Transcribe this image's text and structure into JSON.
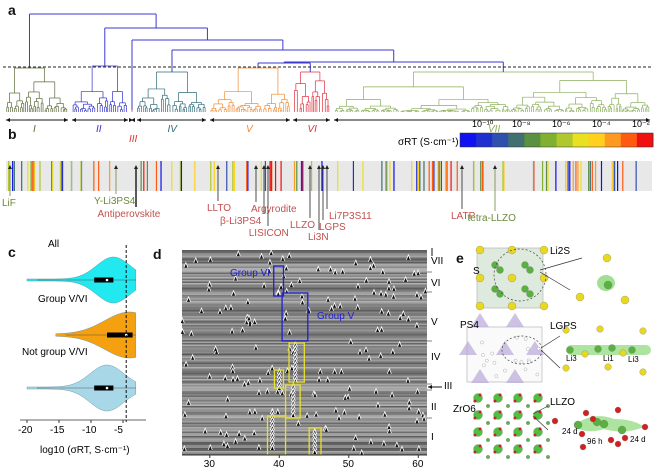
{
  "panels": {
    "a": "a",
    "b": "b",
    "c": "c",
    "d": "d",
    "e": "e"
  },
  "panel_a": {
    "groups": [
      {
        "label": "I",
        "color": "#5a6a3a"
      },
      {
        "label": "II",
        "color": "#3030d0"
      },
      {
        "label": "III",
        "color": "#e03030"
      },
      {
        "label": "IV",
        "color": "#2e6a78"
      },
      {
        "label": "V",
        "color": "#f08a30"
      },
      {
        "label": "VI",
        "color": "#e03040"
      },
      {
        "label": "VII",
        "color": "#8aae5a"
      }
    ]
  },
  "panel_b": {
    "colorbar_title": "σRT (S·cm⁻¹)",
    "colorbar_ticks": [
      "10⁻¹⁰",
      "10⁻⁸",
      "10⁻⁶",
      "10⁻⁴",
      "10⁻²"
    ],
    "colorbar_colors": [
      "#1010f0",
      "#2030d0",
      "#3050b0",
      "#407070",
      "#5a9040",
      "#80b030",
      "#b0c830",
      "#e8e020",
      "#ffd020",
      "#ff9a20",
      "#ff5a10",
      "#f01010"
    ],
    "annotations": [
      {
        "label": "LiF",
        "color": "#6a8a3a"
      },
      {
        "label": "Y-Li3PS4",
        "color": "#6a8a3a"
      },
      {
        "label": "Antiperovskite",
        "color": "#c0504d"
      },
      {
        "label": "LLTO",
        "color": "#c0504d"
      },
      {
        "label": "Argyrodite",
        "color": "#c0504d"
      },
      {
        "label": "β-Li3PS4",
        "color": "#c0504d"
      },
      {
        "label": "LISICON",
        "color": "#c0504d"
      },
      {
        "label": "LLZO",
        "color": "#c0504d"
      },
      {
        "label": "Li3N",
        "color": "#c0504d"
      },
      {
        "label": "LGPS",
        "color": "#c0504d"
      },
      {
        "label": "Li7P3S11",
        "color": "#c0504d"
      },
      {
        "label": "LATP",
        "color": "#c0504d"
      },
      {
        "label": "tetra-LLZO",
        "color": "#6a8a3a"
      }
    ]
  },
  "chart_data": [
    {
      "type": "violin",
      "xlabel": "log10 (σRT, S·cm⁻¹)",
      "xticks": [
        -20,
        -15,
        -10,
        -5
      ],
      "xlim": [
        -21,
        -2
      ],
      "reference_line": -4.5,
      "series": [
        {
          "name": "All",
          "color": "#22e8f0",
          "min": -20,
          "max": -3,
          "q1": -9.5,
          "median": -7.5,
          "q3": -6.5,
          "mode": -6.5
        },
        {
          "name": "Group V/VI",
          "color": "#f5a010",
          "min": -15.5,
          "max": -3,
          "q1": -7.5,
          "median": -4.5,
          "q3": -3.5,
          "mode": -4
        },
        {
          "name": "Not group V/VI",
          "color": "#a8d8e8",
          "min": -20,
          "max": -3,
          "q1": -9.5,
          "median": -7.5,
          "q3": -6.5,
          "mode": -7.5
        }
      ]
    },
    {
      "type": "heatmap",
      "xticks": [
        30,
        40,
        50,
        60
      ],
      "xlim": [
        26,
        61
      ],
      "row_groups": [
        "VII",
        "VI",
        "V",
        "IV",
        "III",
        "II",
        "I"
      ],
      "box_annotations": [
        {
          "label": "Group VI",
          "color": "#2020d0"
        },
        {
          "label": "Group V",
          "color": "#2020d0"
        }
      ]
    }
  ],
  "panel_e": {
    "labels": {
      "li2s": "Li2S",
      "s": "S",
      "ps4": "PS4",
      "lgps": "LGPS",
      "li3a": "Li3",
      "li1": "Li1",
      "li3b": "Li3",
      "zro6": "ZrO6",
      "llzo": "LLZO",
      "d24a": "24 d",
      "h96": "96 h",
      "d24b": "24 d"
    }
  }
}
